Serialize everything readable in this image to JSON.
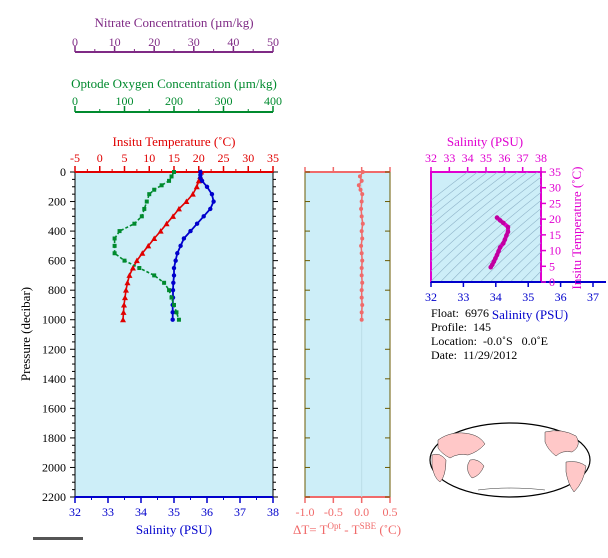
{
  "colors": {
    "nitrate": "#7f2a85",
    "oxygen": "#008a2e",
    "temperature": "#e00000",
    "salinity": "#0000cc",
    "delta_t": "#f06a6a",
    "ts_axis": "#e000d0",
    "panel_bg": "#cdeef8",
    "land": "#ffc8c8"
  },
  "chart_data": [
    {
      "type": "line",
      "title": "",
      "ylabel": "Pressure (decibar)",
      "ylim": [
        2200,
        0
      ],
      "yticks": [
        "0",
        "200",
        "400",
        "600",
        "800",
        "1000",
        "1200",
        "1400",
        "1600",
        "1800",
        "2000",
        "2200"
      ],
      "axes": {
        "nitrate": {
          "label": "Nitrate Concentration (µm/kg)",
          "range": [
            0,
            50
          ],
          "ticks": [
            "0",
            "10",
            "20",
            "30",
            "40",
            "50"
          ]
        },
        "oxygen": {
          "label": "Optode Oxygen Concentration (µm/kg)",
          "range": [
            0,
            400
          ],
          "ticks": [
            "0",
            "100",
            "200",
            "300",
            "400"
          ]
        },
        "temperature": {
          "label": "Insitu Temperature (˚C)",
          "range": [
            -5,
            35
          ],
          "ticks": [
            "-5",
            "0",
            "5",
            "10",
            "15",
            "20",
            "25",
            "30",
            "35"
          ]
        },
        "salinity": {
          "label": "Salinity (PSU)",
          "range": [
            32,
            38
          ],
          "ticks": [
            "32",
            "33",
            "34",
            "35",
            "36",
            "37",
            "38"
          ]
        }
      },
      "series": [
        {
          "axis": "temperature",
          "pressure": [
            0,
            30,
            60,
            100,
            150,
            200,
            250,
            300,
            350,
            400,
            450,
            500,
            550,
            600,
            650,
            700,
            750,
            800,
            850,
            900,
            950,
            1000
          ],
          "values": [
            20.5,
            20.3,
            20.0,
            19.6,
            18.8,
            17.5,
            16.0,
            14.8,
            13.5,
            12.3,
            11.0,
            9.8,
            8.6,
            7.5,
            6.7,
            6.0,
            5.6,
            5.3,
            5.1,
            4.9,
            4.8,
            4.7
          ]
        },
        {
          "axis": "salinity",
          "pressure": [
            0,
            20,
            40,
            60,
            100,
            150,
            200,
            250,
            300,
            350,
            400,
            450,
            500,
            550,
            600,
            650,
            700,
            750,
            800,
            850,
            900,
            950,
            1000
          ],
          "values": [
            35.8,
            35.8,
            35.8,
            35.85,
            36.0,
            36.15,
            36.2,
            36.1,
            35.9,
            35.7,
            35.5,
            35.3,
            35.2,
            35.1,
            35.05,
            35.0,
            35.0,
            34.98,
            34.97,
            34.97,
            34.96,
            34.96,
            34.96
          ]
        },
        {
          "axis": "oxygen",
          "pressure": [
            0,
            30,
            60,
            90,
            120,
            150,
            200,
            250,
            300,
            350,
            400,
            450,
            500,
            550,
            600,
            650,
            700,
            750,
            800,
            850,
            900,
            950,
            1000
          ],
          "values": [
            200,
            195,
            190,
            175,
            160,
            150,
            145,
            140,
            135,
            120,
            90,
            80,
            80,
            80,
            100,
            130,
            160,
            180,
            190,
            195,
            200,
            205,
            210
          ]
        }
      ]
    },
    {
      "type": "line",
      "xlabel": "ΔT= T^Opt - T^SBE (˚C)",
      "xlim": [
        -1.0,
        0.5
      ],
      "xticks": [
        "-1.0",
        "-0.5",
        "0.0",
        "0.5"
      ],
      "ylim": [
        2200,
        0
      ],
      "series": [
        {
          "pressure": [
            0,
            30,
            60,
            90,
            120,
            150,
            200,
            250,
            300,
            350,
            400,
            450,
            500,
            550,
            600,
            650,
            700,
            750,
            800,
            850,
            900,
            950,
            1000
          ],
          "values": [
            0.02,
            -0.03,
            0.0,
            -0.05,
            -0.02,
            0.01,
            0.0,
            -0.01,
            0.0,
            0.02,
            0.0,
            0.01,
            -0.01,
            0.0,
            0.01,
            0.0,
            0.0,
            0.01,
            0.0,
            0.0,
            0.01,
            0.0,
            0.0
          ]
        }
      ]
    },
    {
      "type": "scatter",
      "title": "",
      "xlabel": "Salinity (PSU)",
      "ylabel": "Insitu Temperature (˚C)",
      "xlim": [
        32,
        37.5
      ],
      "ylim": [
        0,
        35
      ],
      "top_ticks": [
        "32",
        "33",
        "34",
        "35",
        "36",
        "37",
        "38"
      ],
      "bottom_ticks": [
        "32",
        "33",
        "34",
        "35",
        "36",
        "37"
      ],
      "right_ticks": [
        "0",
        "5",
        "10",
        "15",
        "20",
        "25",
        "30",
        "35"
      ],
      "series": [
        {
          "salinity": [
            33.9,
            33.95,
            34.0,
            34.05,
            34.1,
            34.15,
            34.2,
            34.3,
            34.35,
            34.4,
            34.45,
            34.45,
            34.3,
            34.2,
            34.1
          ],
          "temperature": [
            4.7,
            5.5,
            6.5,
            7.5,
            8.6,
            9.8,
            11.0,
            12.3,
            13.5,
            14.8,
            16.0,
            17.5,
            18.8,
            19.6,
            20.5
          ]
        }
      ]
    }
  ],
  "info": {
    "float": "Float:  6976",
    "profile": "Profile:  145",
    "location": "Location:  -0.0˚S   0.0˚E",
    "date": "Date:  11/29/2012"
  }
}
